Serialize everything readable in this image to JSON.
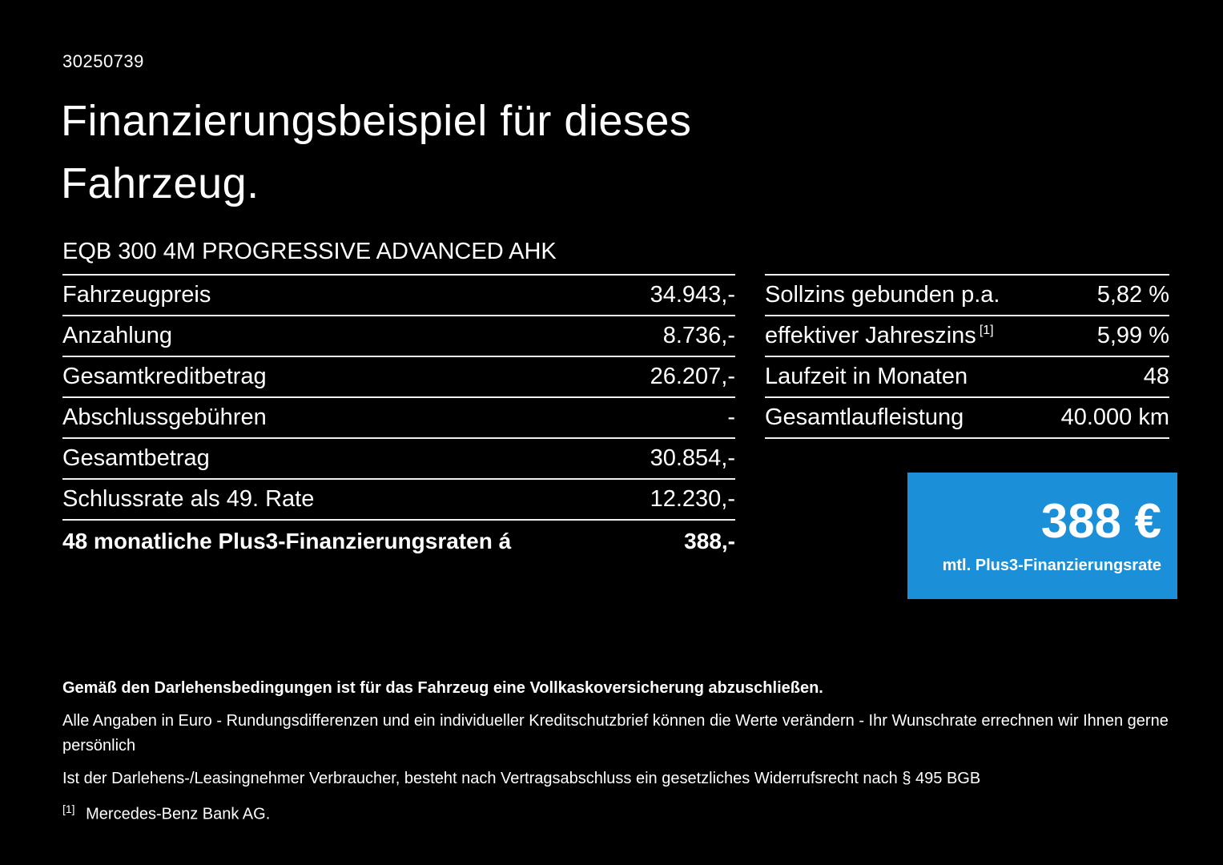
{
  "page": {
    "reference_number": "30250739",
    "title_line1": "Finanzierungsbeispiel für dieses",
    "title_line2": "Fahrzeug.",
    "vehicle_name": "EQB 300 4M PROGRESSIVE ADVANCED AHK"
  },
  "left_table": {
    "rows": [
      {
        "label": "Fahrzeugpreis",
        "value": "34.943,-"
      },
      {
        "label": "Anzahlung",
        "value": "8.736,-"
      },
      {
        "label": "Gesamtkreditbetrag",
        "value": "26.207,-"
      },
      {
        "label": "Abschlussgebühren",
        "value": "-"
      },
      {
        "label": "Gesamtbetrag",
        "value": "30.854,-"
      },
      {
        "label": "Schlussrate als 49. Rate",
        "value": "12.230,-"
      },
      {
        "label": "48 monatliche Plus3-Finanzierungsraten á",
        "value": "388,-"
      }
    ]
  },
  "right_table": {
    "rows": [
      {
        "label": "Sollzins gebunden p.a.",
        "value": "5,82 %"
      },
      {
        "label": "effektiver Jahreszins",
        "sup": "[1]",
        "value": "5,99 %"
      },
      {
        "label": "Laufzeit in Monaten",
        "value": "48"
      },
      {
        "label": "Gesamtlaufleistung",
        "value": "40.000 km"
      }
    ]
  },
  "rate_box": {
    "amount": "388 €",
    "caption": "mtl. Plus3-Finanzierungsrate",
    "background_color": "#1b90d9"
  },
  "footer": {
    "bold_note": "Gemäß den Darlehensbedingungen ist für das Fahrzeug eine Vollkaskoversicherung abzuschließen.",
    "note2": "Alle Angaben in Euro - Rundungsdifferenzen und ein individueller Kreditschutzbrief können die Werte verändern - Ihr Wunschrate errechnen wir Ihnen gerne persönlich",
    "note3": "Ist der Darlehens-/Leasingnehmer Verbraucher, besteht nach Vertragsabschluss ein gesetzliches Widerrufsrecht nach § 495 BGB",
    "footnote_marker": "[1]",
    "footnote_text": "Mercedes-Benz Bank AG."
  }
}
